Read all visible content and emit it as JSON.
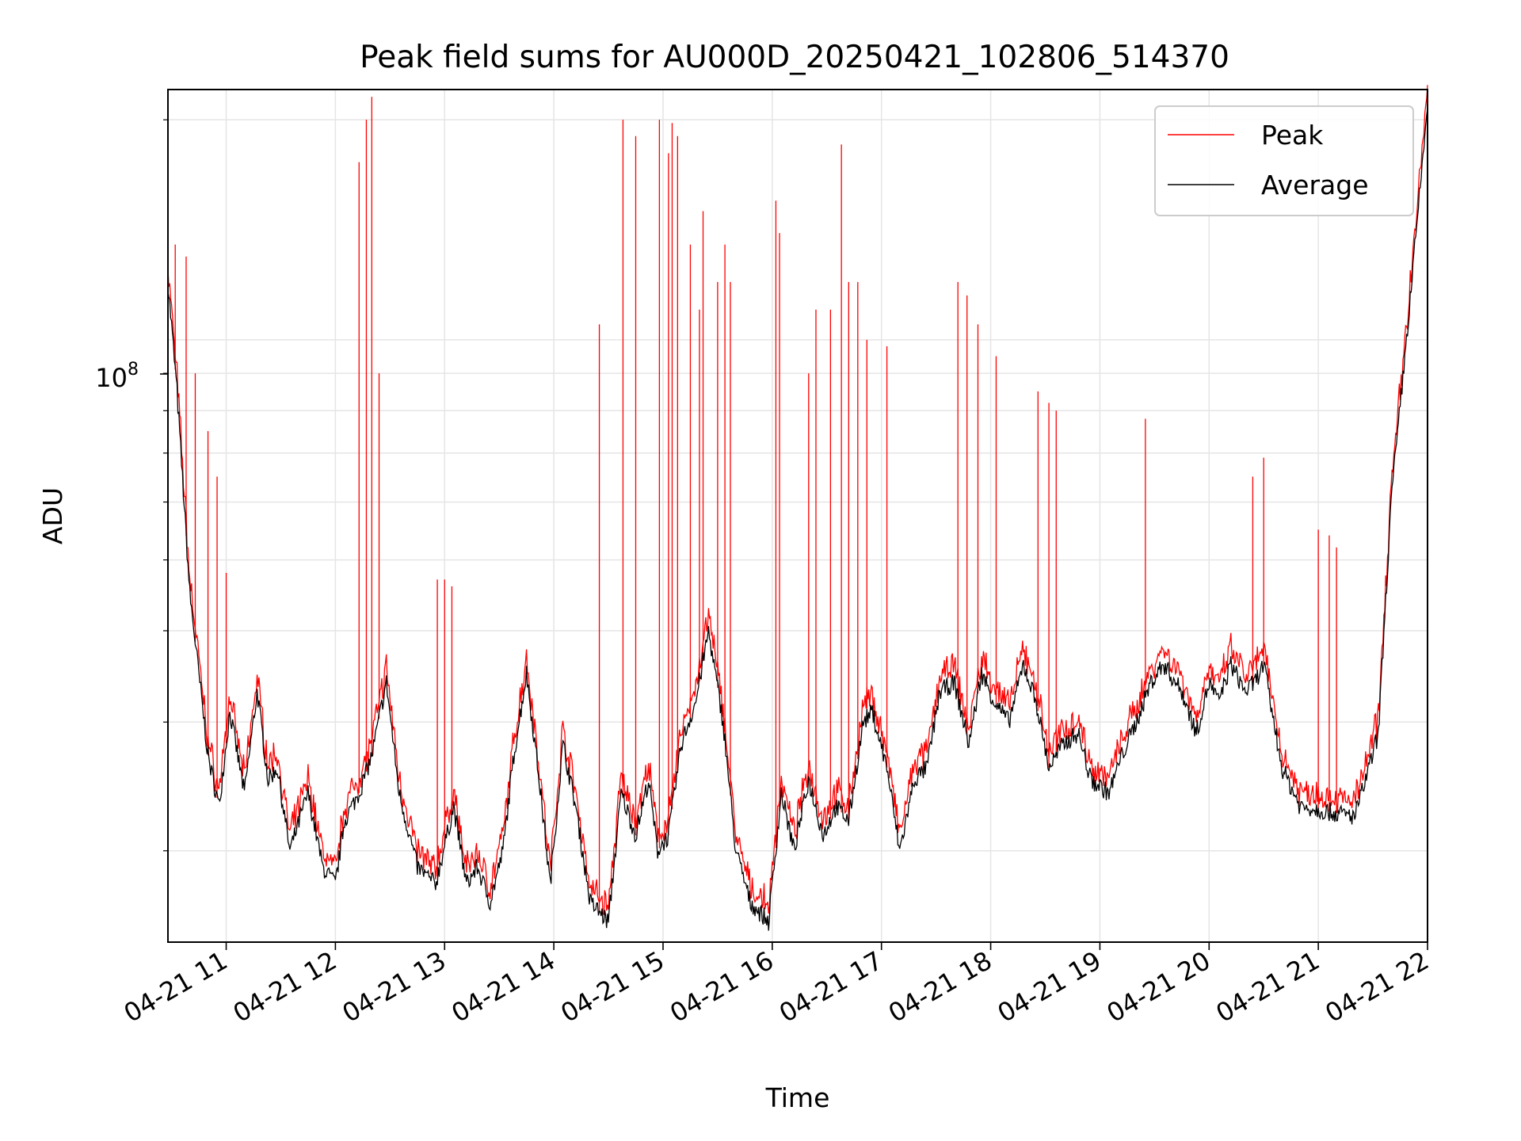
{
  "chart_data": {
    "type": "line",
    "title": "Peak field sums for AU000D_20250421_102806_514370",
    "xlabel": "Time",
    "ylabel": "ADU",
    "y_scale": "log",
    "ylim": [
      15000000,
      220000000
    ],
    "xlim": [
      "2025-04-21 10:28",
      "2025-04-21 22:00"
    ],
    "x_ticks": [
      "04-21 11",
      "04-21 12",
      "04-21 13",
      "04-21 14",
      "04-21 15",
      "04-21 16",
      "04-21 17",
      "04-21 18",
      "04-21 19",
      "04-21 20",
      "04-21 21",
      "04-21 22"
    ],
    "y_tick_labels": [
      {
        "value": 100000000,
        "base": "10",
        "exp": "8"
      }
    ],
    "grid": true,
    "legend_position": "top-right",
    "series": [
      {
        "name": "Peak",
        "color": "#ff0000"
      },
      {
        "name": "Average",
        "color": "#000000"
      }
    ],
    "average_baseline": {
      "x": [
        "2025-04-21 10:28",
        "2025-04-21 10:33",
        "2025-04-21 10:40",
        "2025-04-21 10:50",
        "2025-04-21 10:56",
        "2025-04-21 11:02",
        "2025-04-21 11:10",
        "2025-04-21 11:17",
        "2025-04-21 11:23",
        "2025-04-21 11:28",
        "2025-04-21 11:35",
        "2025-04-21 11:45",
        "2025-04-21 11:53",
        "2025-04-21 12:00",
        "2025-04-21 12:05",
        "2025-04-21 12:13",
        "2025-04-21 12:20",
        "2025-04-21 12:28",
        "2025-04-21 12:35",
        "2025-04-21 12:45",
        "2025-04-21 12:55",
        "2025-04-21 13:05",
        "2025-04-21 13:12",
        "2025-04-21 13:18",
        "2025-04-21 13:25",
        "2025-04-21 13:32",
        "2025-04-21 13:38",
        "2025-04-21 13:45",
        "2025-04-21 13:52",
        "2025-04-21 13:58",
        "2025-04-21 14:05",
        "2025-04-21 14:12",
        "2025-04-21 14:20",
        "2025-04-21 14:30",
        "2025-04-21 14:37",
        "2025-04-21 14:45",
        "2025-04-21 14:52",
        "2025-04-21 14:57",
        "2025-04-21 15:03",
        "2025-04-21 15:10",
        "2025-04-21 15:18",
        "2025-04-21 15:25",
        "2025-04-21 15:33",
        "2025-04-21 15:40",
        "2025-04-21 15:48",
        "2025-04-21 15:58",
        "2025-04-21 16:05",
        "2025-04-21 16:12",
        "2025-04-21 16:20",
        "2025-04-21 16:28",
        "2025-04-21 16:35",
        "2025-04-21 16:42",
        "2025-04-21 16:50",
        "2025-04-21 16:55",
        "2025-04-21 17:03",
        "2025-04-21 17:10",
        "2025-04-21 17:18",
        "2025-04-21 17:25",
        "2025-04-21 17:32",
        "2025-04-21 17:40",
        "2025-04-21 17:48",
        "2025-04-21 17:55",
        "2025-04-21 18:02",
        "2025-04-21 18:10",
        "2025-04-21 18:18",
        "2025-04-21 18:25",
        "2025-04-21 18:32",
        "2025-04-21 18:40",
        "2025-04-21 18:48",
        "2025-04-21 18:55",
        "2025-04-21 19:05",
        "2025-04-21 19:12",
        "2025-04-21 19:20",
        "2025-04-21 19:28",
        "2025-04-21 19:35",
        "2025-04-21 19:45",
        "2025-04-21 19:53",
        "2025-04-21 20:00",
        "2025-04-21 20:05",
        "2025-04-21 20:12",
        "2025-04-21 20:20",
        "2025-04-21 20:25",
        "2025-04-21 20:30",
        "2025-04-21 20:40",
        "2025-04-21 20:50",
        "2025-04-21 21:00",
        "2025-04-21 21:10",
        "2025-04-21 21:20",
        "2025-04-21 21:28",
        "2025-04-21 21:33",
        "2025-04-21 21:40",
        "2025-04-21 21:50",
        "2025-04-21 22:00"
      ],
      "y": [
        120000000,
        85000000,
        45000000,
        27000000,
        23000000,
        31000000,
        24000000,
        33000000,
        25000000,
        26000000,
        20000000,
        24000000,
        19000000,
        18000000,
        22000000,
        24000000,
        27000000,
        34000000,
        24000000,
        19000000,
        18000000,
        23000000,
        18000000,
        19000000,
        17000000,
        20000000,
        27000000,
        35000000,
        25000000,
        18000000,
        28000000,
        23000000,
        17000000,
        16000000,
        24000000,
        21000000,
        25000000,
        20000000,
        21000000,
        28000000,
        32000000,
        40000000,
        30000000,
        20000000,
        17000000,
        16000000,
        24000000,
        20000000,
        25000000,
        21000000,
        23000000,
        22000000,
        30000000,
        31000000,
        26000000,
        20000000,
        25000000,
        26000000,
        33000000,
        34000000,
        28000000,
        35000000,
        32000000,
        30000000,
        36000000,
        32000000,
        26000000,
        28000000,
        29000000,
        25000000,
        24000000,
        27000000,
        30000000,
        34000000,
        36000000,
        33000000,
        29000000,
        34000000,
        32000000,
        36000000,
        33000000,
        34000000,
        36000000,
        26000000,
        23000000,
        22800000,
        22500000,
        22300000,
        26000000,
        29000000,
        60000000,
        110000000,
        210000000
      ]
    },
    "peak_spikes": {
      "x": [
        "2025-04-21 10:32",
        "2025-04-21 10:38",
        "2025-04-21 10:43",
        "2025-04-21 10:50",
        "2025-04-21 10:55",
        "2025-04-21 11:00",
        "2025-04-21 12:13",
        "2025-04-21 12:17",
        "2025-04-21 12:20",
        "2025-04-21 12:24",
        "2025-04-21 12:56",
        "2025-04-21 13:00",
        "2025-04-21 13:04",
        "2025-04-21 14:25",
        "2025-04-21 14:38",
        "2025-04-21 14:45",
        "2025-04-21 14:58",
        "2025-04-21 15:03",
        "2025-04-21 15:05",
        "2025-04-21 15:08",
        "2025-04-21 15:15",
        "2025-04-21 15:20",
        "2025-04-21 15:22",
        "2025-04-21 15:30",
        "2025-04-21 15:34",
        "2025-04-21 15:37",
        "2025-04-21 16:02",
        "2025-04-21 16:04",
        "2025-04-21 16:20",
        "2025-04-21 16:24",
        "2025-04-21 16:32",
        "2025-04-21 16:38",
        "2025-04-21 16:42",
        "2025-04-21 16:47",
        "2025-04-21 16:52",
        "2025-04-21 17:03",
        "2025-04-21 17:42",
        "2025-04-21 17:47",
        "2025-04-21 17:53",
        "2025-04-21 18:03",
        "2025-04-21 18:26",
        "2025-04-21 18:32",
        "2025-04-21 18:36",
        "2025-04-21 19:25",
        "2025-04-21 20:24",
        "2025-04-21 20:30",
        "2025-04-21 21:00",
        "2025-04-21 21:06",
        "2025-04-21 21:10"
      ],
      "y": [
        135000000,
        130000000,
        90000000,
        75000000,
        65000000,
        48000000,
        175000000,
        200000000,
        215000000,
        90000000,
        47000000,
        47000000,
        46000000,
        105000000,
        200000000,
        190000000,
        200000000,
        180000000,
        198000000,
        190000000,
        135000000,
        110000000,
        150000000,
        120000000,
        135000000,
        120000000,
        155000000,
        140000000,
        90000000,
        110000000,
        110000000,
        185000000,
        120000000,
        120000000,
        100000000,
        98000000,
        120000000,
        115000000,
        105000000,
        95000000,
        85000000,
        82000000,
        80000000,
        78000000,
        65000000,
        69000000,
        55000000,
        54000000,
        52000000
      ]
    }
  }
}
